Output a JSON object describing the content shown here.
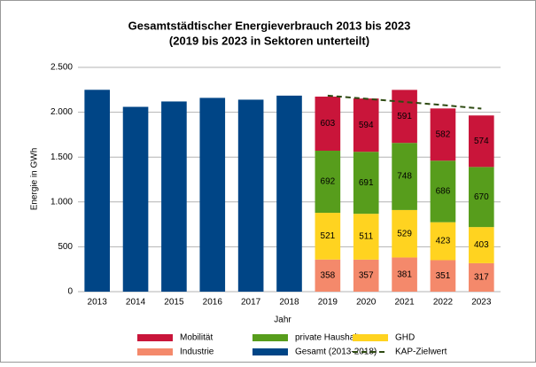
{
  "chart_data": {
    "type": "bar",
    "stacked": true,
    "title": "Gesamtstädtischer Energieverbrauch 2013 bis 2023",
    "subtitle": "(2019 bis 2023 in Sektoren unterteilt)",
    "x_label": "Jahr",
    "y_label": "Energie in GWh",
    "categories": [
      "2013",
      "2014",
      "2015",
      "2016",
      "2017",
      "2018",
      "2019",
      "2020",
      "2021",
      "2022",
      "2023"
    ],
    "series": [
      {
        "name": "Industrie",
        "color": "#f4896b",
        "data_labels": true,
        "values": [
          null,
          null,
          null,
          null,
          null,
          null,
          358,
          357,
          381,
          351,
          317
        ]
      },
      {
        "name": "GHD",
        "color": "#ffd320",
        "data_labels": true,
        "values": [
          null,
          null,
          null,
          null,
          null,
          null,
          521,
          511,
          529,
          423,
          403
        ]
      },
      {
        "name": "private Haushalte",
        "color": "#579d1c",
        "data_labels": true,
        "values": [
          null,
          null,
          null,
          null,
          null,
          null,
          692,
          691,
          748,
          686,
          670
        ]
      },
      {
        "name": "Mobilität",
        "color": "#c9153a",
        "data_labels": true,
        "values": [
          null,
          null,
          null,
          null,
          null,
          null,
          603,
          594,
          591,
          582,
          574
        ]
      },
      {
        "name": "Gesamt (2013-2018)",
        "color": "#004586",
        "data_labels": false,
        "values": [
          2250,
          2060,
          2120,
          2160,
          2140,
          2185,
          null,
          null,
          null,
          null,
          null
        ]
      },
      {
        "name": "KAP-Zielwert",
        "color": "#2e4a12",
        "type": "line",
        "dashed": true,
        "values": [
          null,
          null,
          null,
          null,
          null,
          null,
          2185,
          2150,
          2115,
          2080,
          2040
        ]
      }
    ],
    "ylim": [
      0,
      2500
    ],
    "yticks": [
      0,
      500,
      {
        "value": 1000,
        "label": "1.000"
      },
      {
        "value": 1500,
        "label": "1.500"
      },
      {
        "value": 2000,
        "label": "2.000"
      },
      {
        "value": 2500,
        "label": "2.500"
      }
    ],
    "grid": true,
    "legend": "bottom"
  }
}
